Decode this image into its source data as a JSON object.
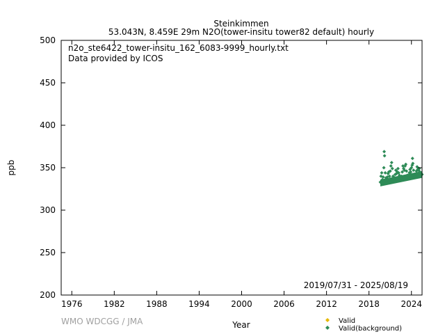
{
  "chart_data": {
    "type": "scatter",
    "title": "Steinkimmen",
    "subtitle": "53.043N, 8.459E 29m    N2O(tower-insitu tower82 default) hourly",
    "filename": "n2o_ste6422_tower-insitu_162_6083-9999_hourly.txt",
    "provider": "Data provided by ICOS",
    "date_range": "2019/07/31 - 2025/08/19",
    "xlabel": "Year",
    "ylabel": "ppb",
    "credit": "WMO WDCGG / JMA",
    "xlim": [
      1974.5,
      2025.5
    ],
    "ylim": [
      200,
      500
    ],
    "xticks": [
      1976,
      1982,
      1988,
      1994,
      2000,
      2006,
      2012,
      2018,
      2024
    ],
    "yticks": [
      200,
      250,
      300,
      350,
      400,
      450,
      500
    ],
    "legend_position": "bottom-right",
    "series": [
      {
        "name": "Valid",
        "color": "#e6b800",
        "marker": "diamond",
        "points": []
      },
      {
        "name": "Valid(background)",
        "color": "#2e8b57",
        "marker": "diamond",
        "points": [
          [
            2019.6,
            333
          ],
          [
            2019.7,
            340
          ],
          [
            2019.8,
            344
          ],
          [
            2019.9,
            336
          ],
          [
            2020.0,
            339
          ],
          [
            2020.1,
            350
          ],
          [
            2020.15,
            369
          ],
          [
            2020.2,
            364
          ],
          [
            2020.3,
            344
          ],
          [
            2020.4,
            338
          ],
          [
            2020.5,
            335
          ],
          [
            2020.6,
            339
          ],
          [
            2020.7,
            343
          ],
          [
            2020.8,
            345
          ],
          [
            2020.9,
            340
          ],
          [
            2021.0,
            346
          ],
          [
            2021.1,
            352
          ],
          [
            2021.2,
            356
          ],
          [
            2021.3,
            349
          ],
          [
            2021.4,
            340
          ],
          [
            2021.5,
            337
          ],
          [
            2021.6,
            338
          ],
          [
            2021.7,
            342
          ],
          [
            2021.8,
            347
          ],
          [
            2021.9,
            343
          ],
          [
            2022.0,
            345
          ],
          [
            2022.1,
            349
          ],
          [
            2022.2,
            344
          ],
          [
            2022.3,
            341
          ],
          [
            2022.4,
            339
          ],
          [
            2022.5,
            338
          ],
          [
            2022.6,
            340
          ],
          [
            2022.7,
            345
          ],
          [
            2022.8,
            352
          ],
          [
            2022.9,
            349
          ],
          [
            2023.0,
            347
          ],
          [
            2023.1,
            352
          ],
          [
            2023.2,
            354
          ],
          [
            2023.3,
            346
          ],
          [
            2023.4,
            341
          ],
          [
            2023.5,
            339
          ],
          [
            2023.6,
            341
          ],
          [
            2023.7,
            344
          ],
          [
            2023.8,
            348
          ],
          [
            2023.9,
            345
          ],
          [
            2024.0,
            350
          ],
          [
            2024.1,
            353
          ],
          [
            2024.15,
            361
          ],
          [
            2024.2,
            355
          ],
          [
            2024.3,
            347
          ],
          [
            2024.4,
            342
          ],
          [
            2024.5,
            340
          ],
          [
            2024.6,
            342
          ],
          [
            2024.7,
            346
          ],
          [
            2024.8,
            351
          ],
          [
            2024.9,
            348
          ],
          [
            2025.0,
            347
          ],
          [
            2025.1,
            349
          ],
          [
            2025.2,
            345
          ],
          [
            2025.3,
            342
          ],
          [
            2025.4,
            343
          ],
          [
            2025.5,
            342
          ]
        ]
      }
    ]
  }
}
